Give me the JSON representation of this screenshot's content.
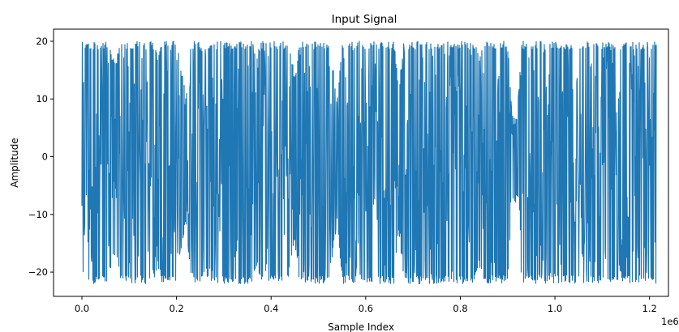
{
  "chart_data": {
    "type": "line",
    "title": "Input Signal",
    "xlabel": "Sample Index",
    "ylabel": "Amplitude",
    "x_offset_text": "1e6",
    "xlim": [
      -0.06,
      1.24
    ],
    "ylim": [
      -24.2,
      22.1
    ],
    "xticks": [
      0.0,
      0.2,
      0.4,
      0.6,
      0.8,
      1.0,
      1.2
    ],
    "xtick_labels": [
      "0.0",
      "0.2",
      "0.4",
      "0.6",
      "0.8",
      "1.0",
      "1.2"
    ],
    "yticks": [
      20,
      10,
      0,
      -10,
      -20
    ],
    "ytick_labels": [
      "20",
      "10",
      "0",
      "−10",
      "−20"
    ],
    "grid": false,
    "series": [
      {
        "color": "#1f77b4",
        "x_range": [
          0.0,
          1.215
        ],
        "envelope": {
          "x": [
            0.0,
            0.01,
            0.02,
            0.03,
            0.04,
            0.05,
            0.06,
            0.07,
            0.08,
            0.09,
            0.1,
            0.11,
            0.12,
            0.13,
            0.14,
            0.15,
            0.16,
            0.17,
            0.18,
            0.19,
            0.2,
            0.21,
            0.22,
            0.23,
            0.24,
            0.25,
            0.26,
            0.27,
            0.28,
            0.29,
            0.3,
            0.31,
            0.32,
            0.33,
            0.34,
            0.35,
            0.36,
            0.37,
            0.38,
            0.39,
            0.4,
            0.41,
            0.42,
            0.43,
            0.44,
            0.45,
            0.46,
            0.47,
            0.48,
            0.49,
            0.5,
            0.51,
            0.52,
            0.53,
            0.54,
            0.55,
            0.56,
            0.57,
            0.58,
            0.59,
            0.6,
            0.61,
            0.62,
            0.63,
            0.64,
            0.65,
            0.66,
            0.67,
            0.68,
            0.69,
            0.7,
            0.71,
            0.72,
            0.73,
            0.74,
            0.75,
            0.76,
            0.77,
            0.78,
            0.79,
            0.8,
            0.81,
            0.82,
            0.83,
            0.84,
            0.85,
            0.86,
            0.87,
            0.88,
            0.89,
            0.9,
            0.91,
            0.92,
            0.93,
            0.94,
            0.95,
            0.96,
            0.97,
            0.98,
            0.99,
            1.0,
            1.01,
            1.02,
            1.03,
            1.04,
            1.05,
            1.06,
            1.07,
            1.08,
            1.09,
            1.1,
            1.11,
            1.12,
            1.13,
            1.14,
            1.15,
            1.16,
            1.17,
            1.18,
            1.19,
            1.2,
            1.21
          ],
          "max": [
            20,
            20,
            20,
            20,
            20,
            20,
            19,
            16,
            20,
            20,
            20,
            20,
            20,
            20,
            20,
            20,
            18,
            20,
            20,
            20,
            20,
            15,
            11,
            20,
            20,
            20,
            19,
            20,
            20,
            20,
            20,
            20,
            20,
            20,
            20,
            20,
            20,
            18,
            20,
            20,
            20,
            20,
            20,
            20,
            19,
            14,
            20,
            20,
            20,
            20,
            20,
            20,
            20,
            16,
            10,
            20,
            20,
            20,
            20,
            20,
            20,
            20,
            20,
            20,
            20,
            20,
            20,
            12,
            20,
            20,
            20,
            20,
            20,
            20,
            20,
            20,
            20,
            20,
            20,
            20,
            20,
            20,
            20,
            20,
            18,
            20,
            20,
            20,
            20,
            20,
            20,
            7,
            7,
            20,
            20,
            20,
            20,
            20,
            20,
            20,
            20,
            20,
            20,
            20,
            20,
            20,
            20,
            20,
            20,
            20,
            20,
            20,
            20,
            20,
            20,
            20,
            20,
            20,
            20,
            20,
            20,
            20
          ],
          "min": [
            -21,
            -22,
            -22,
            -22,
            -22,
            -22,
            -20,
            -17,
            -21,
            -22,
            -22,
            -22,
            -22,
            -22,
            -22,
            -22,
            -19,
            -22,
            -22,
            -22,
            -22,
            -16,
            -12,
            -21,
            -22,
            -22,
            -20,
            -22,
            -22,
            -22,
            -22,
            -22,
            -22,
            -22,
            -22,
            -22,
            -22,
            -19,
            -22,
            -22,
            -22,
            -22,
            -22,
            -22,
            -20,
            -15,
            -22,
            -22,
            -22,
            -22,
            -22,
            -22,
            -22,
            -17,
            -11,
            -22,
            -22,
            -22,
            -22,
            -22,
            -22,
            -22,
            -22,
            -22,
            -22,
            -22,
            -22,
            -13,
            -21,
            -22,
            -22,
            -22,
            -22,
            -22,
            -22,
            -22,
            -22,
            -22,
            -22,
            -22,
            -22,
            -22,
            -22,
            -22,
            -19,
            -22,
            -22,
            -22,
            -22,
            -22,
            -22,
            -8,
            -8,
            -22,
            -22,
            -22,
            -22,
            -22,
            -22,
            -22,
            -22,
            -22,
            -22,
            -22,
            -22,
            -22,
            -22,
            -22,
            -22,
            -22,
            -22,
            -22,
            -22,
            -22,
            -22,
            -22,
            -22,
            -22,
            -22,
            -22,
            -22,
            -22
          ]
        }
      }
    ]
  }
}
